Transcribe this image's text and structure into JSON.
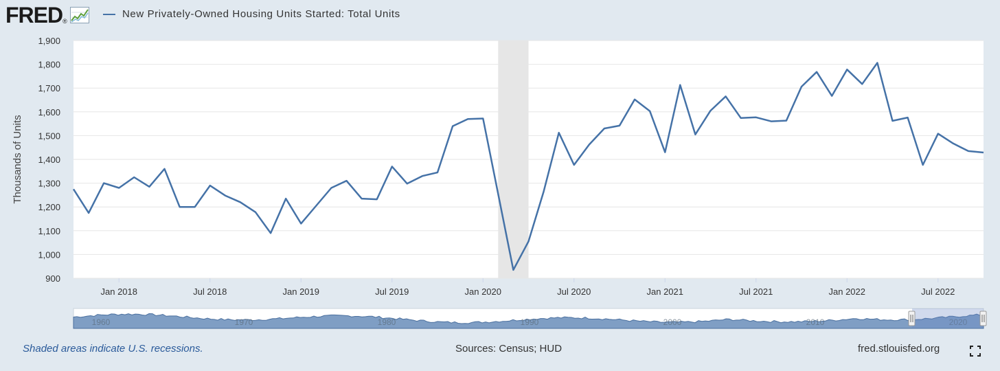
{
  "header": {
    "logo_text": "FRED",
    "logo_reg": "®",
    "series_title": "New Privately-Owned Housing Units Started: Total Units"
  },
  "footer": {
    "recession_note": "Shaded areas indicate U.S. recessions.",
    "sources": "Sources: Census; HUD",
    "site": "fred.stlouisfed.org"
  },
  "icons": {
    "logo_chart": "logo-chart-icon",
    "fullscreen": "fullscreen-icon"
  },
  "colors": {
    "line": "#4572a7",
    "recession": "#e6e6e6",
    "background": "#e1e9f0",
    "plot": "#ffffff",
    "navigator_fill": "#7f9ec4"
  },
  "chart_data": {
    "type": "line",
    "ylabel": "Thousands of Units",
    "ylim": [
      900,
      1900
    ],
    "yticks": [
      900,
      1000,
      1100,
      1200,
      1300,
      1400,
      1500,
      1600,
      1700,
      1800,
      1900
    ],
    "xlim": [
      "2017-10",
      "2022-10"
    ],
    "xticks": [
      {
        "date": "2018-01",
        "label": "Jan 2018"
      },
      {
        "date": "2018-07",
        "label": "Jul 2018"
      },
      {
        "date": "2019-01",
        "label": "Jan 2019"
      },
      {
        "date": "2019-07",
        "label": "Jul 2019"
      },
      {
        "date": "2020-01",
        "label": "Jan 2020"
      },
      {
        "date": "2020-07",
        "label": "Jul 2020"
      },
      {
        "date": "2021-01",
        "label": "Jan 2021"
      },
      {
        "date": "2021-07",
        "label": "Jul 2021"
      },
      {
        "date": "2022-01",
        "label": "Jan 2022"
      },
      {
        "date": "2022-07",
        "label": "Jul 2022"
      }
    ],
    "recessions": [
      {
        "start": "2020-02",
        "end": "2020-04"
      }
    ],
    "grid": true,
    "legend": "top-left",
    "series": [
      {
        "name": "New Privately-Owned Housing Units Started: Total Units",
        "x": [
          "2017-10",
          "2017-11",
          "2017-12",
          "2018-01",
          "2018-02",
          "2018-03",
          "2018-04",
          "2018-05",
          "2018-06",
          "2018-07",
          "2018-08",
          "2018-09",
          "2018-10",
          "2018-11",
          "2018-12",
          "2019-01",
          "2019-02",
          "2019-03",
          "2019-04",
          "2019-05",
          "2019-06",
          "2019-07",
          "2019-08",
          "2019-09",
          "2019-10",
          "2019-11",
          "2019-12",
          "2020-01",
          "2020-02",
          "2020-03",
          "2020-04",
          "2020-05",
          "2020-06",
          "2020-07",
          "2020-08",
          "2020-09",
          "2020-10",
          "2020-11",
          "2020-12",
          "2021-01",
          "2021-02",
          "2021-03",
          "2021-04",
          "2021-05",
          "2021-06",
          "2021-07",
          "2021-08",
          "2021-09",
          "2021-10",
          "2021-11",
          "2021-12",
          "2022-01",
          "2022-02",
          "2022-03",
          "2022-04",
          "2022-05",
          "2022-06",
          "2022-07",
          "2022-08",
          "2022-09",
          "2022-10"
        ],
        "values": [
          1275,
          1175,
          1300,
          1280,
          1325,
          1285,
          1360,
          1200,
          1200,
          1290,
          1248,
          1220,
          1178,
          1090,
          1235,
          1130,
          1205,
          1280,
          1310,
          1235,
          1232,
          1370,
          1298,
          1330,
          1345,
          1540,
          1570,
          1572,
          1255,
          935,
          1055,
          1265,
          1512,
          1377,
          1462,
          1530,
          1542,
          1652,
          1603,
          1430,
          1713,
          1505,
          1605,
          1665,
          1574,
          1577,
          1560,
          1563,
          1706,
          1768,
          1667,
          1778,
          1717,
          1806,
          1562,
          1576,
          1377,
          1508,
          1467,
          1435,
          1429
        ]
      }
    ]
  },
  "navigator": {
    "year_labels": [
      "1960",
      "1970",
      "1980",
      "1990",
      "2000",
      "2010",
      "2020"
    ]
  }
}
